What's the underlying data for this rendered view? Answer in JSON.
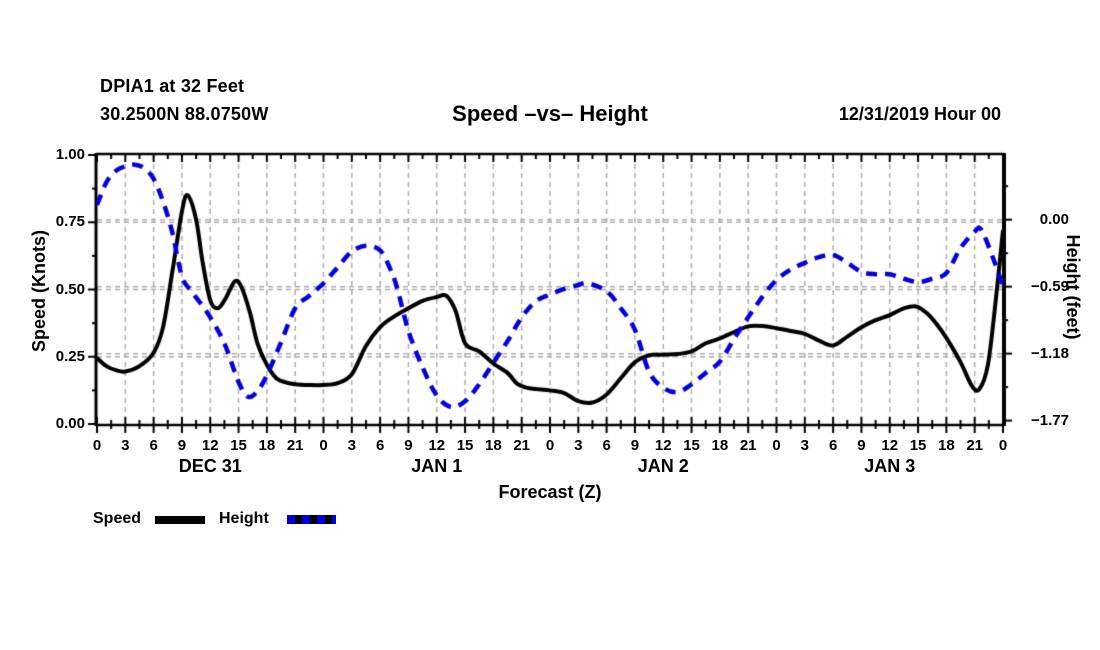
{
  "header": {
    "station": "DPIA1 at 32 Feet",
    "location": "30.2500N 88.0750W",
    "datetime": "12/31/2019 Hour 00"
  },
  "legend": {
    "items": [
      {
        "label": "Speed",
        "color": "#000000",
        "style": "solid"
      },
      {
        "label": "Height",
        "color": "#0000dd",
        "style": "dashed"
      }
    ]
  },
  "chart_data": {
    "type": "line",
    "title": "Speed –vs– Height",
    "xlabel": "Forecast (Z)",
    "grid": {
      "color": "#aeaeae",
      "vertical_every_hours": 3,
      "horizontal_left_values": [
        0.25,
        0.5,
        0.75
      ],
      "horizontal_right_values": [
        0.0,
        -0.59,
        -1.18
      ]
    },
    "x_axis": {
      "unit": "forecast hour (Z)",
      "min": 0,
      "max": 96,
      "major_tick_step": 3,
      "minor_tick_step": 1.5,
      "tick_labels": [
        "0",
        "3",
        "6",
        "9",
        "12",
        "15",
        "18",
        "21",
        "0",
        "3",
        "6",
        "9",
        "12",
        "15",
        "18",
        "21",
        "0",
        "3",
        "6",
        "9",
        "12",
        "15",
        "18",
        "21",
        "0",
        "3",
        "6",
        "9",
        "12",
        "15",
        "18",
        "21",
        "0"
      ],
      "day_labels": [
        {
          "label": "DEC 31",
          "hour": 12
        },
        {
          "label": "JAN 1",
          "hour": 36
        },
        {
          "label": "JAN 2",
          "hour": 60
        },
        {
          "label": "JAN 3",
          "hour": 84
        }
      ]
    },
    "left_axis": {
      "label": "Speed (Knots)",
      "min": 0.0,
      "max": 1.0,
      "minor_step": 0.125,
      "ticks": [
        {
          "value": 1.0,
          "label": "1.00"
        },
        {
          "value": 0.75,
          "label": "0.75"
        },
        {
          "value": 0.5,
          "label": "0.50"
        },
        {
          "value": 0.25,
          "label": "0.25"
        },
        {
          "value": 0.0,
          "label": "0.00"
        }
      ]
    },
    "right_axis": {
      "label": "Height (feet)",
      "min": -1.8,
      "max": 0.57,
      "minor_step": 0.295,
      "ticks": [
        {
          "value": 0.0,
          "label": "0.00"
        },
        {
          "value": -0.59,
          "label": "−0.59"
        },
        {
          "value": -1.18,
          "label": "−1.18"
        },
        {
          "value": -1.77,
          "label": "−1.77"
        }
      ]
    },
    "series": [
      {
        "name": "Speed",
        "axis": "left",
        "units": "knots",
        "color": "#000000",
        "line_style": "solid",
        "line_width": 4,
        "x": [
          0,
          1,
          2,
          3,
          4.5,
          6,
          7,
          8,
          9,
          9.6,
          10.5,
          11.2,
          12,
          12.8,
          13.6,
          14.6,
          15.3,
          16.2,
          17,
          18,
          19,
          20,
          21,
          22.5,
          24,
          25.5,
          27,
          28.5,
          30,
          31.5,
          33,
          34.5,
          36,
          37,
          38,
          39,
          40.5,
          42,
          43.5,
          44.5,
          45.5,
          46.5,
          48,
          49.5,
          51,
          52.5,
          54,
          55.5,
          57,
          58.5,
          60,
          61.5,
          63,
          64.5,
          66,
          67.5,
          69,
          70.5,
          72,
          73.5,
          75,
          76.5,
          78,
          79.5,
          81,
          82.5,
          84,
          85.5,
          86.8,
          88,
          89,
          90,
          91.5,
          92.7,
          93.5,
          94.4,
          95.2,
          96
        ],
        "values": [
          0.245,
          0.215,
          0.2,
          0.195,
          0.215,
          0.265,
          0.36,
          0.57,
          0.79,
          0.85,
          0.76,
          0.6,
          0.46,
          0.43,
          0.465,
          0.53,
          0.51,
          0.415,
          0.3,
          0.22,
          0.17,
          0.155,
          0.148,
          0.145,
          0.145,
          0.152,
          0.185,
          0.29,
          0.36,
          0.4,
          0.43,
          0.458,
          0.472,
          0.477,
          0.42,
          0.3,
          0.27,
          0.225,
          0.19,
          0.15,
          0.135,
          0.13,
          0.125,
          0.115,
          0.085,
          0.08,
          0.11,
          0.17,
          0.23,
          0.255,
          0.258,
          0.26,
          0.27,
          0.3,
          0.318,
          0.342,
          0.363,
          0.364,
          0.356,
          0.346,
          0.335,
          0.31,
          0.292,
          0.325,
          0.36,
          0.386,
          0.405,
          0.43,
          0.437,
          0.41,
          0.37,
          0.32,
          0.23,
          0.142,
          0.13,
          0.22,
          0.45,
          0.72
        ]
      },
      {
        "name": "Height",
        "axis": "right",
        "units": "feet",
        "color": "#0000dd",
        "line_style": "dashed",
        "dash": [
          11,
          8
        ],
        "line_width": 4.5,
        "x": [
          0,
          1,
          2,
          3,
          4,
          5,
          6,
          7,
          8,
          9,
          10,
          11,
          12,
          13.5,
          15,
          16,
          17,
          18,
          19.5,
          21,
          22.5,
          24,
          25.5,
          27,
          28.5,
          30,
          31,
          31.8,
          33,
          34.5,
          36,
          37.5,
          39,
          40.5,
          42,
          43.5,
          45,
          46.5,
          48,
          49.5,
          51,
          52,
          54,
          55.5,
          57,
          58.5,
          60,
          61.5,
          63,
          64.5,
          66,
          67.5,
          69,
          70.5,
          72,
          73.5,
          75,
          76.5,
          78,
          79.5,
          81,
          82.5,
          84,
          85.5,
          87,
          88.5,
          90,
          91.5,
          93,
          93.7,
          95,
          96
        ],
        "values": [
          0.13,
          0.33,
          0.43,
          0.47,
          0.485,
          0.455,
          0.36,
          0.16,
          -0.12,
          -0.5,
          -0.63,
          -0.74,
          -0.86,
          -1.09,
          -1.43,
          -1.56,
          -1.51,
          -1.37,
          -1.08,
          -0.78,
          -0.67,
          -0.56,
          -0.42,
          -0.28,
          -0.23,
          -0.27,
          -0.42,
          -0.6,
          -0.98,
          -1.3,
          -1.55,
          -1.65,
          -1.6,
          -1.45,
          -1.26,
          -1.07,
          -0.86,
          -0.72,
          -0.66,
          -0.61,
          -0.575,
          -0.56,
          -0.63,
          -0.78,
          -0.97,
          -1.34,
          -1.48,
          -1.52,
          -1.45,
          -1.35,
          -1.25,
          -1.05,
          -0.86,
          -0.68,
          -0.53,
          -0.44,
          -0.38,
          -0.33,
          -0.31,
          -0.38,
          -0.46,
          -0.48,
          -0.48,
          -0.52,
          -0.55,
          -0.52,
          -0.47,
          -0.25,
          -0.105,
          -0.088,
          -0.35,
          -0.59
        ]
      }
    ]
  }
}
